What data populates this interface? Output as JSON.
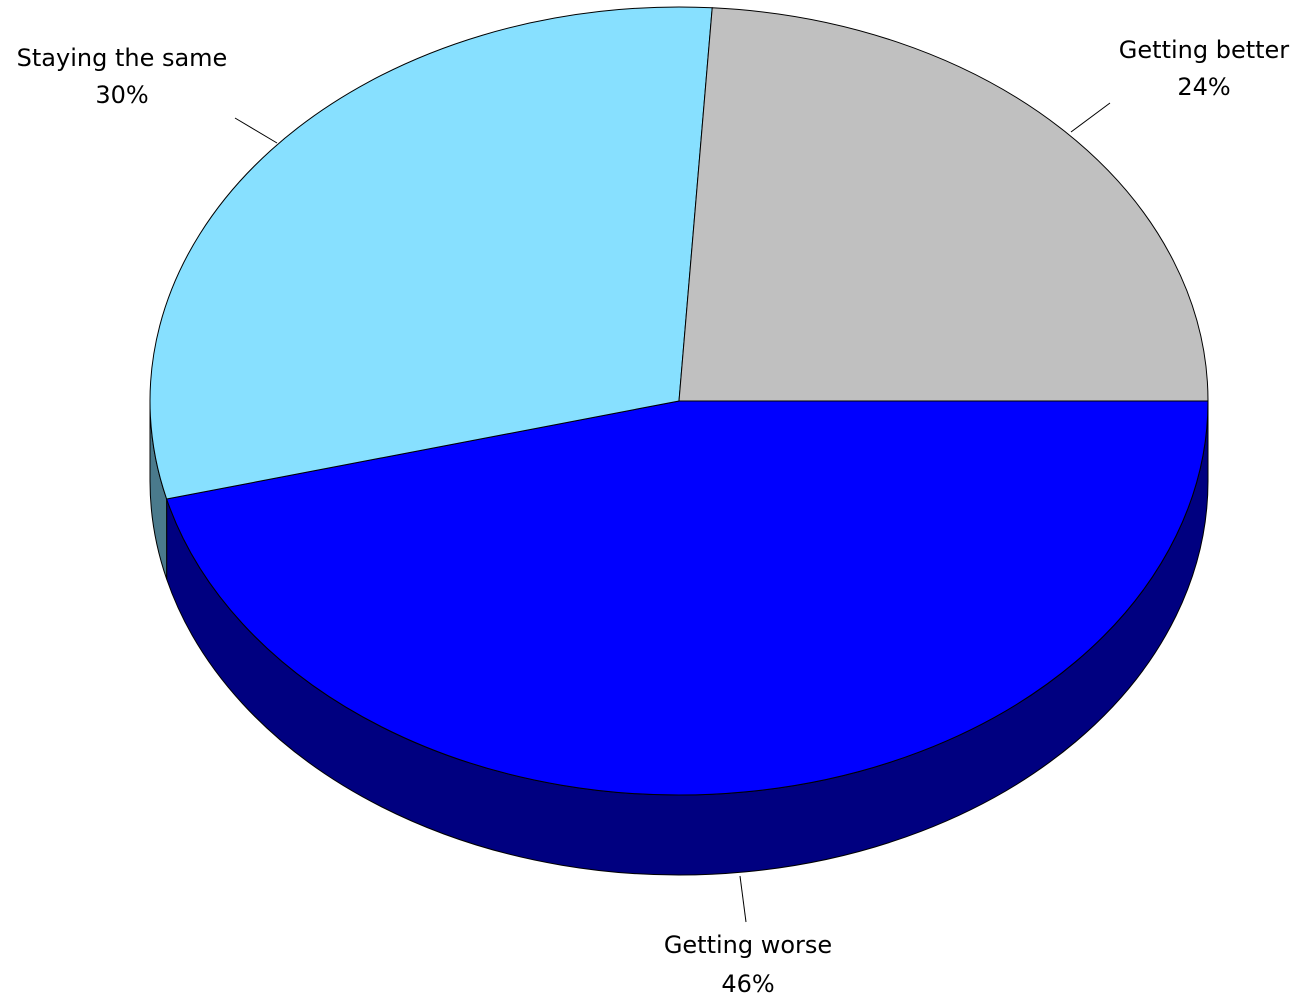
{
  "chart_data": {
    "type": "pie",
    "variant": "3d",
    "categories": [
      "Getting better",
      "Getting worse",
      "Staying the same"
    ],
    "values": [
      24,
      46,
      30
    ],
    "value_labels": [
      "24%",
      "46%",
      "30%"
    ],
    "colors": [
      "#C0C0C0",
      "#0000FF",
      "#87E0FF"
    ],
    "side_colors": [
      "#808080",
      "#000080",
      "#4A7A8C"
    ],
    "title": "",
    "legend": "none"
  }
}
